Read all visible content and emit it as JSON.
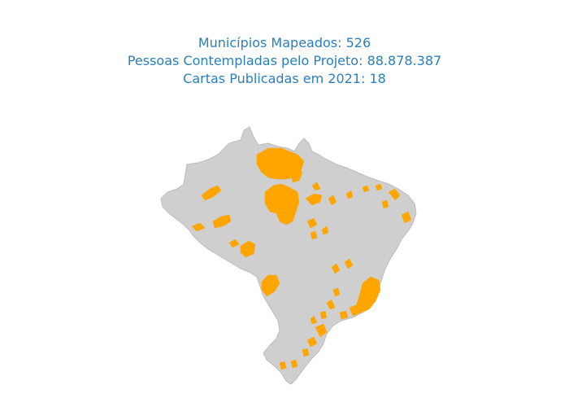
{
  "colors": {
    "title": "#2a7fba",
    "land": "#cfcfcf",
    "land_border": "#bdbdbd",
    "highlight": "#ffa500",
    "background": "#ffffff"
  },
  "title": {
    "line1": "Municípios Mapeados: 526",
    "line2": "Pessoas Contempladas pelo Projeto: 88.878.387",
    "line3": "Cartas Publicadas em 2021: 18"
  },
  "map": {
    "country": "Brazil",
    "legend": "none"
  }
}
